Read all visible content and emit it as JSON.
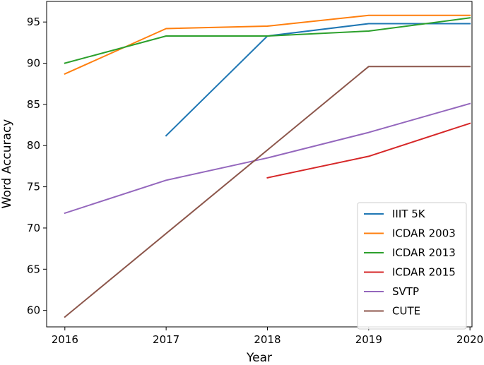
{
  "chart_data": {
    "type": "line",
    "xlabel": "Year",
    "ylabel": "Word Accuracy",
    "x": [
      2016,
      2017,
      2018,
      2019,
      2020
    ],
    "xlim": [
      2015.82,
      2020.02
    ],
    "ylim": [
      58.0,
      97.5
    ],
    "xticks": [
      "2016",
      "2017",
      "2018",
      "2019",
      "2020"
    ],
    "yticks": [
      "60",
      "65",
      "70",
      "75",
      "80",
      "85",
      "90",
      "95"
    ],
    "legend_position": "lower-right",
    "grid": false,
    "series": [
      {
        "name": "IIIT 5K",
        "color": "#1f77b4",
        "x": [
          2017,
          2018,
          2019,
          2020
        ],
        "values": [
          81.2,
          93.3,
          94.8,
          94.8
        ]
      },
      {
        "name": "ICDAR 2003",
        "color": "#ff7f0e",
        "x": [
          2016,
          2017,
          2018,
          2019,
          2020
        ],
        "values": [
          88.7,
          94.2,
          94.5,
          95.8,
          95.8
        ]
      },
      {
        "name": "ICDAR 2013",
        "color": "#2ca02c",
        "x": [
          2016,
          2017,
          2018,
          2019,
          2020
        ],
        "values": [
          90.0,
          93.3,
          93.3,
          93.9,
          95.5
        ]
      },
      {
        "name": "ICDAR 2015",
        "color": "#d62728",
        "x": [
          2018,
          2019,
          2020
        ],
        "values": [
          76.1,
          78.7,
          82.7
        ]
      },
      {
        "name": "SVTP",
        "color": "#9467bd",
        "x": [
          2016,
          2017,
          2018,
          2019,
          2020
        ],
        "values": [
          71.8,
          75.8,
          78.5,
          81.6,
          85.1
        ]
      },
      {
        "name": "CUTE",
        "color": "#8c564b",
        "x": [
          2016,
          2019,
          2020
        ],
        "values": [
          59.2,
          89.6,
          89.6
        ]
      }
    ]
  }
}
